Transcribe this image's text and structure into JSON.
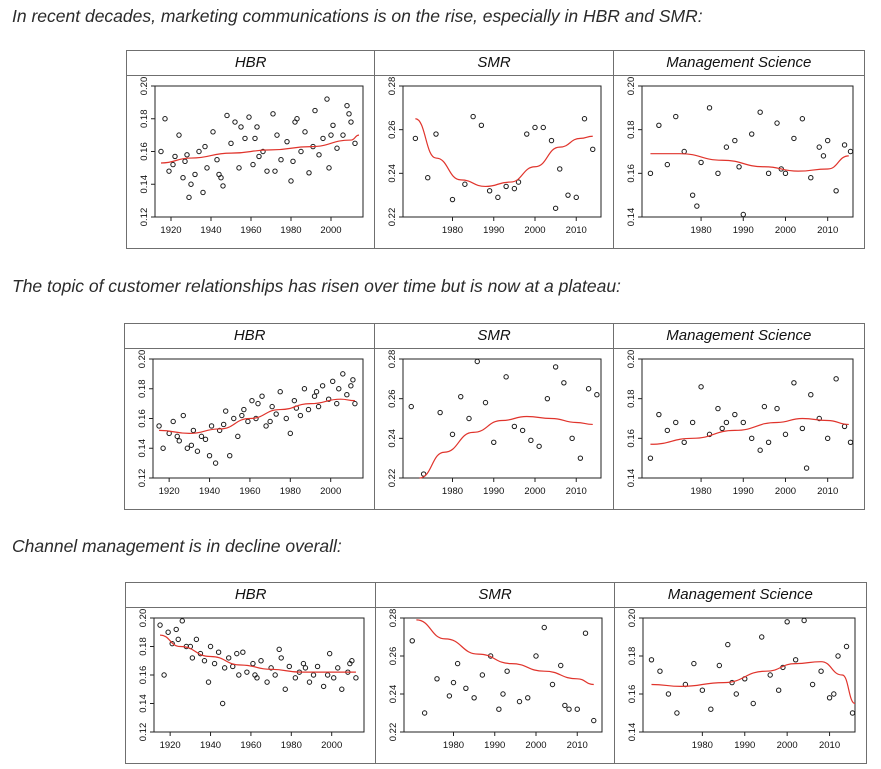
{
  "captions": [
    "In recent decades, marketing communications is on the rise, especially in HBR and SMR:",
    "The topic of customer relationships has risen over time but is now at a plateau:",
    "Channel management is in decline overall:"
  ],
  "colors": {
    "fit": "#e0342c",
    "point": "#1a1a1a",
    "frame": "#6f6f6f"
  },
  "chart_data": [
    {
      "type": "scatter",
      "topic": "marketing communications",
      "title": "HBR",
      "ylim": [
        0.12,
        0.2
      ],
      "yticks": [
        "0.12",
        "0.14",
        "0.16",
        "0.18",
        "0.20"
      ],
      "xlim": [
        1912,
        2016
      ],
      "xticks": [
        1920,
        1940,
        1960,
        1980,
        2000
      ],
      "trend": {
        "x": [
          1915,
          1930,
          1950,
          1970,
          1990,
          2010,
          2014
        ],
        "y": [
          0.153,
          0.156,
          0.159,
          0.161,
          0.163,
          0.167,
          0.17
        ]
      },
      "points": {
        "x": [
          1915,
          1917,
          1919,
          1921,
          1924,
          1926,
          1928,
          1930,
          1932,
          1934,
          1936,
          1938,
          1941,
          1943,
          1945,
          1948,
          1950,
          1952,
          1954,
          1957,
          1959,
          1961,
          1963,
          1966,
          1968,
          1971,
          1973,
          1975,
          1978,
          1980,
          1982,
          1985,
          1987,
          1989,
          1992,
          1994,
          1996,
          1999,
          2001,
          2003,
          2006,
          2008,
          2010,
          2012,
          1922,
          1929,
          1937,
          1946,
          1955,
          1964,
          1972,
          1983,
          1991,
          2000,
          2009,
          1927,
          1944,
          1962,
          1981,
          1998
        ],
        "y": [
          0.16,
          0.18,
          0.148,
          0.152,
          0.17,
          0.144,
          0.158,
          0.14,
          0.146,
          0.16,
          0.135,
          0.15,
          0.172,
          0.155,
          0.144,
          0.182,
          0.165,
          0.178,
          0.15,
          0.168,
          0.181,
          0.152,
          0.175,
          0.16,
          0.148,
          0.183,
          0.17,
          0.155,
          0.166,
          0.142,
          0.178,
          0.16,
          0.172,
          0.147,
          0.185,
          0.158,
          0.168,
          0.15,
          0.176,
          0.162,
          0.17,
          0.188,
          0.178,
          0.165,
          0.157,
          0.132,
          0.163,
          0.139,
          0.175,
          0.157,
          0.148,
          0.18,
          0.163,
          0.17,
          0.183,
          0.154,
          0.146,
          0.168,
          0.154,
          0.192
        ]
      }
    },
    {
      "type": "scatter",
      "topic": "marketing communications",
      "title": "SMR",
      "ylim": [
        0.22,
        0.28
      ],
      "yticks": [
        "0.22",
        "0.24",
        "0.26",
        "0.28"
      ],
      "xlim": [
        1968,
        2016
      ],
      "xticks": [
        1980,
        1990,
        2000,
        2010
      ],
      "trend": {
        "x": [
          1971,
          1976,
          1982,
          1988,
          1994,
          2000,
          2006,
          2011,
          2014
        ],
        "y": [
          0.265,
          0.247,
          0.237,
          0.234,
          0.236,
          0.243,
          0.252,
          0.256,
          0.257
        ]
      },
      "points": {
        "x": [
          1971,
          1974,
          1976,
          1980,
          1983,
          1985,
          1987,
          1989,
          1991,
          1993,
          1995,
          1998,
          2000,
          2002,
          2004,
          2006,
          2008,
          2010,
          2012,
          2014,
          1996,
          2005
        ],
        "y": [
          0.256,
          0.238,
          0.258,
          0.228,
          0.235,
          0.266,
          0.262,
          0.232,
          0.229,
          0.234,
          0.233,
          0.258,
          0.261,
          0.261,
          0.255,
          0.242,
          0.23,
          0.229,
          0.265,
          0.251,
          0.236,
          0.224
        ]
      }
    },
    {
      "type": "scatter",
      "topic": "marketing communications",
      "title": "Management Science",
      "ylim": [
        0.14,
        0.2
      ],
      "yticks": [
        "0.14",
        "0.16",
        "0.18",
        "0.20"
      ],
      "xlim": [
        1966,
        2016
      ],
      "xticks": [
        1980,
        1990,
        2000,
        2010
      ],
      "trend": {
        "x": [
          1968,
          1975,
          1985,
          1995,
          2003,
          2010,
          2015
        ],
        "y": [
          0.169,
          0.169,
          0.166,
          0.163,
          0.161,
          0.162,
          0.168
        ]
      },
      "points": {
        "x": [
          1968,
          1970,
          1972,
          1974,
          1976,
          1978,
          1980,
          1982,
          1984,
          1986,
          1988,
          1990,
          1992,
          1994,
          1996,
          1998,
          2000,
          2002,
          2004,
          2006,
          2008,
          2010,
          2012,
          2014,
          2016,
          1979,
          1989,
          1999,
          2009
        ],
        "y": [
          0.16,
          0.182,
          0.164,
          0.186,
          0.17,
          0.15,
          0.165,
          0.19,
          0.16,
          0.172,
          0.175,
          0.14,
          0.178,
          0.188,
          0.16,
          0.183,
          0.16,
          0.176,
          0.185,
          0.158,
          0.172,
          0.175,
          0.152,
          0.173,
          0.17,
          0.145,
          0.163,
          0.162,
          0.168
        ]
      }
    },
    {
      "type": "scatter",
      "topic": "customer relationships",
      "title": "HBR",
      "ylim": [
        0.12,
        0.2
      ],
      "yticks": [
        "0.12",
        "0.14",
        "0.16",
        "0.18",
        "0.20"
      ],
      "xlim": [
        1912,
        2016
      ],
      "xticks": [
        1920,
        1940,
        1960,
        1980,
        2000
      ],
      "trend": {
        "x": [
          1915,
          1930,
          1945,
          1960,
          1975,
          1990,
          2005,
          2012
        ],
        "y": [
          0.152,
          0.15,
          0.153,
          0.16,
          0.166,
          0.17,
          0.173,
          0.172
        ]
      },
      "points": {
        "x": [
          1915,
          1917,
          1920,
          1922,
          1925,
          1927,
          1929,
          1932,
          1934,
          1936,
          1938,
          1941,
          1943,
          1945,
          1948,
          1950,
          1952,
          1954,
          1957,
          1959,
          1961,
          1963,
          1966,
          1968,
          1971,
          1973,
          1975,
          1978,
          1980,
          1982,
          1985,
          1987,
          1989,
          1992,
          1994,
          1996,
          1999,
          2001,
          2003,
          2006,
          2008,
          2010,
          2012,
          1924,
          1931,
          1940,
          1947,
          1956,
          1964,
          1970,
          1983,
          1993,
          2004,
          2011
        ],
        "y": [
          0.155,
          0.14,
          0.15,
          0.158,
          0.145,
          0.162,
          0.14,
          0.152,
          0.138,
          0.148,
          0.146,
          0.155,
          0.13,
          0.152,
          0.165,
          0.135,
          0.16,
          0.148,
          0.166,
          0.158,
          0.172,
          0.16,
          0.175,
          0.155,
          0.168,
          0.163,
          0.178,
          0.16,
          0.15,
          0.172,
          0.162,
          0.18,
          0.166,
          0.175,
          0.168,
          0.182,
          0.173,
          0.185,
          0.17,
          0.19,
          0.176,
          0.182,
          0.17,
          0.148,
          0.142,
          0.135,
          0.156,
          0.162,
          0.17,
          0.158,
          0.167,
          0.178,
          0.18,
          0.186
        ]
      }
    },
    {
      "type": "scatter",
      "topic": "customer relationships",
      "title": "SMR",
      "ylim": [
        0.22,
        0.28
      ],
      "yticks": [
        "0.22",
        "0.24",
        "0.26",
        "0.28"
      ],
      "xlim": [
        1968,
        2016
      ],
      "xticks": [
        1980,
        1990,
        2000,
        2010
      ],
      "trend": {
        "x": [
          1972,
          1978,
          1985,
          1992,
          1998,
          2004,
          2010,
          2014
        ],
        "y": [
          0.22,
          0.233,
          0.243,
          0.249,
          0.251,
          0.25,
          0.248,
          0.247
        ]
      },
      "points": {
        "x": [
          1970,
          1973,
          1977,
          1980,
          1982,
          1984,
          1986,
          1988,
          1990,
          1993,
          1995,
          1997,
          1999,
          2001,
          2003,
          2005,
          2007,
          2009,
          2011,
          2013,
          2015
        ],
        "y": [
          0.256,
          0.222,
          0.253,
          0.242,
          0.261,
          0.25,
          0.28,
          0.258,
          0.238,
          0.271,
          0.246,
          0.244,
          0.239,
          0.236,
          0.26,
          0.276,
          0.268,
          0.24,
          0.23,
          0.265,
          0.262
        ]
      }
    },
    {
      "type": "scatter",
      "topic": "customer relationships",
      "title": "Management Science",
      "ylim": [
        0.14,
        0.2
      ],
      "yticks": [
        "0.14",
        "0.16",
        "0.18",
        "0.20"
      ],
      "xlim": [
        1966,
        2016
      ],
      "xticks": [
        1980,
        1990,
        2000,
        2010
      ],
      "trend": {
        "x": [
          1968,
          1978,
          1988,
          1998,
          2004,
          2010,
          2015
        ],
        "y": [
          0.157,
          0.16,
          0.164,
          0.168,
          0.17,
          0.169,
          0.167
        ]
      },
      "points": {
        "x": [
          1968,
          1970,
          1972,
          1974,
          1976,
          1978,
          1980,
          1982,
          1984,
          1986,
          1988,
          1990,
          1992,
          1994,
          1996,
          1998,
          2000,
          2002,
          2004,
          2006,
          2008,
          2010,
          2012,
          2014,
          2016,
          1985,
          1995,
          2005
        ],
        "y": [
          0.15,
          0.172,
          0.164,
          0.168,
          0.158,
          0.168,
          0.186,
          0.162,
          0.175,
          0.168,
          0.172,
          0.168,
          0.16,
          0.154,
          0.158,
          0.175,
          0.162,
          0.188,
          0.165,
          0.182,
          0.17,
          0.16,
          0.19,
          0.166,
          0.158,
          0.165,
          0.176,
          0.145
        ]
      }
    },
    {
      "type": "scatter",
      "topic": "channel management",
      "title": "HBR",
      "ylim": [
        0.12,
        0.2
      ],
      "yticks": [
        "0.12",
        "0.14",
        "0.16",
        "0.18",
        "0.20"
      ],
      "xlim": [
        1912,
        2016
      ],
      "xticks": [
        1920,
        1940,
        1960,
        1980,
        2000
      ],
      "trend": {
        "x": [
          1915,
          1925,
          1940,
          1955,
          1970,
          1985,
          2000,
          2012
        ],
        "y": [
          0.188,
          0.18,
          0.173,
          0.167,
          0.164,
          0.162,
          0.162,
          0.162
        ]
      },
      "points": {
        "x": [
          1915,
          1917,
          1919,
          1921,
          1924,
          1926,
          1928,
          1931,
          1933,
          1935,
          1937,
          1940,
          1942,
          1944,
          1947,
          1949,
          1951,
          1954,
          1956,
          1958,
          1961,
          1963,
          1965,
          1968,
          1970,
          1972,
          1975,
          1977,
          1979,
          1982,
          1984,
          1986,
          1989,
          1991,
          1993,
          1996,
          1998,
          2001,
          2003,
          2005,
          2008,
          2010,
          2012,
          1923,
          1930,
          1939,
          1946,
          1953,
          1962,
          1974,
          1987,
          1999,
          2009
        ],
        "y": [
          0.195,
          0.16,
          0.19,
          0.182,
          0.185,
          0.198,
          0.18,
          0.172,
          0.185,
          0.175,
          0.17,
          0.18,
          0.168,
          0.176,
          0.165,
          0.172,
          0.166,
          0.16,
          0.176,
          0.162,
          0.168,
          0.158,
          0.17,
          0.155,
          0.165,
          0.16,
          0.172,
          0.15,
          0.166,
          0.158,
          0.162,
          0.168,
          0.155,
          0.16,
          0.166,
          0.152,
          0.16,
          0.158,
          0.165,
          0.15,
          0.162,
          0.17,
          0.158,
          0.192,
          0.18,
          0.155,
          0.14,
          0.175,
          0.16,
          0.178,
          0.165,
          0.175,
          0.168
        ]
      }
    },
    {
      "type": "scatter",
      "topic": "channel management",
      "title": "SMR",
      "ylim": [
        0.22,
        0.28
      ],
      "yticks": [
        "0.22",
        "0.24",
        "0.26",
        "0.28"
      ],
      "xlim": [
        1968,
        2016
      ],
      "xticks": [
        1980,
        1990,
        2000,
        2010
      ],
      "trend": {
        "x": [
          1971,
          1978,
          1986,
          1994,
          2002,
          2010,
          2014
        ],
        "y": [
          0.279,
          0.269,
          0.261,
          0.256,
          0.252,
          0.248,
          0.245
        ]
      },
      "points": {
        "x": [
          1970,
          1973,
          1976,
          1979,
          1981,
          1983,
          1985,
          1987,
          1989,
          1991,
          1993,
          1996,
          1998,
          2000,
          2002,
          2004,
          2006,
          2008,
          2010,
          2012,
          2014,
          1980,
          1992,
          2007
        ],
        "y": [
          0.268,
          0.23,
          0.248,
          0.239,
          0.256,
          0.243,
          0.238,
          0.25,
          0.26,
          0.232,
          0.252,
          0.236,
          0.238,
          0.26,
          0.275,
          0.245,
          0.255,
          0.232,
          0.232,
          0.272,
          0.226,
          0.246,
          0.24,
          0.234
        ]
      }
    },
    {
      "type": "scatter",
      "topic": "channel management",
      "title": "Management Science",
      "ylim": [
        0.14,
        0.2
      ],
      "yticks": [
        "0.14",
        "0.16",
        "0.18",
        "0.20"
      ],
      "xlim": [
        1966,
        2016
      ],
      "xticks": [
        1980,
        1990,
        2000,
        2010
      ],
      "trend": {
        "x": [
          1968,
          1975,
          1985,
          1995,
          2002,
          2008,
          2013,
          2016
        ],
        "y": [
          0.165,
          0.164,
          0.166,
          0.172,
          0.176,
          0.177,
          0.17,
          0.155
        ]
      },
      "points": {
        "x": [
          1968,
          1970,
          1972,
          1974,
          1976,
          1978,
          1980,
          1982,
          1984,
          1986,
          1988,
          1990,
          1992,
          1994,
          1996,
          1998,
          2000,
          2002,
          2004,
          2006,
          2008,
          2010,
          2012,
          2014,
          2016,
          1987,
          1999,
          2011
        ],
        "y": [
          0.178,
          0.172,
          0.16,
          0.15,
          0.165,
          0.176,
          0.162,
          0.152,
          0.175,
          0.186,
          0.16,
          0.168,
          0.155,
          0.19,
          0.17,
          0.162,
          0.198,
          0.178,
          0.2,
          0.165,
          0.172,
          0.158,
          0.18,
          0.185,
          0.15,
          0.166,
          0.174,
          0.16
        ]
      }
    }
  ]
}
